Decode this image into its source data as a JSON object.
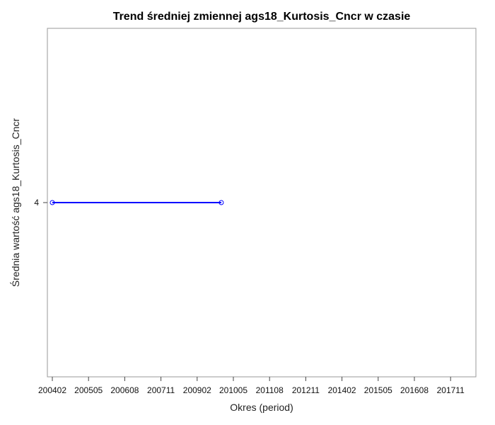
{
  "chart_data": {
    "type": "line",
    "title": "Trend średniej zmiennej ags18_Kurtosis_Cncr w czasie",
    "xlabel": "Okres (period)",
    "ylabel": "Średnia wartość ags18_Kurtosis_Cncr",
    "x_ticks": [
      "200402",
      "200505",
      "200608",
      "200711",
      "200902",
      "201005",
      "201108",
      "201211",
      "201402",
      "201505",
      "201608",
      "201711"
    ],
    "y_ticks": [
      4
    ],
    "xlim": [
      "200402",
      "201802"
    ],
    "series": [
      {
        "x": [
          "200402",
          "200912"
        ],
        "y": [
          4,
          4
        ]
      }
    ],
    "grid": false,
    "colors": {
      "line": "#0000ff",
      "frame": "#9a9a9a"
    }
  }
}
